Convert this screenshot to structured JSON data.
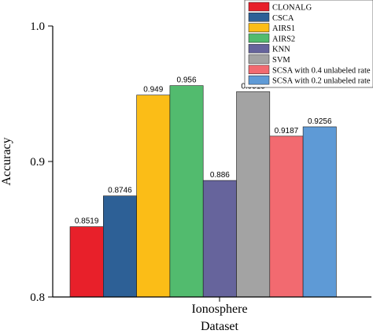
{
  "chart_data": {
    "type": "bar",
    "categories": [
      "Ionosphere"
    ],
    "series": [
      {
        "name": "CLONALG",
        "values": [
          0.8519
        ],
        "label": "0.8519",
        "color": "#e8202a"
      },
      {
        "name": "CSCA",
        "values": [
          0.8746
        ],
        "label": "0.8746",
        "color": "#2d6096"
      },
      {
        "name": "AIRS1",
        "values": [
          0.949
        ],
        "label": "0.949",
        "color": "#fbbd17"
      },
      {
        "name": "AIRS2",
        "values": [
          0.956
        ],
        "label": "0.956",
        "color": "#52bb6e"
      },
      {
        "name": "KNN",
        "values": [
          0.886
        ],
        "label": "0.886",
        "color": "#66649c"
      },
      {
        "name": "SVM",
        "values": [
          0.9515
        ],
        "label": "0.9515",
        "color": "#a3a3a3"
      },
      {
        "name": "SCSA with 0.4 unlabeled rate",
        "values": [
          0.9187
        ],
        "label": "0.9187",
        "color": "#f26a70"
      },
      {
        "name": "SCSA with 0.2 unlabeled rate",
        "values": [
          0.9256
        ],
        "label": "0.9256",
        "color": "#5e9ad6"
      }
    ],
    "xlabel": "Dataset",
    "ylabel": "Accuracy",
    "ylim": [
      0.8,
      1.0
    ],
    "yticks": [
      {
        "value": 0.8,
        "label": "0.8"
      },
      {
        "value": 0.9,
        "label": "0.9"
      },
      {
        "value": 1.0,
        "label": "1.0"
      }
    ],
    "legend": "top-right",
    "grid": false
  }
}
